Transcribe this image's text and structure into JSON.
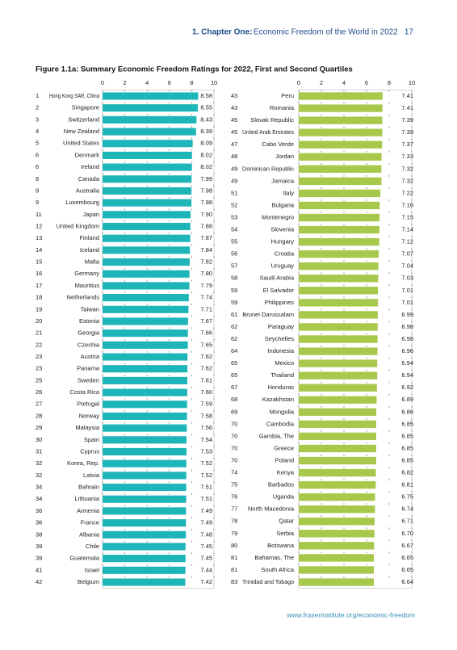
{
  "header": {
    "chapter": "1. Chapter One:",
    "title": "Economic Freedom of the World in 2022",
    "page_number": 17
  },
  "figure_title": "Figure 1.1a: Summary Economic Freedom Ratings for 2022, First and Second Quartiles",
  "footer": "www.fraserinstitute.org/economic-freedom",
  "chart_data": [
    {
      "type": "bar",
      "orientation": "horizontal",
      "color": "#1db5b8",
      "xlim": [
        0,
        10
      ],
      "xticks": [
        0,
        2,
        4,
        6,
        8,
        10
      ],
      "grid": true,
      "ranks": [
        1,
        2,
        3,
        4,
        5,
        6,
        6,
        8,
        9,
        9,
        11,
        12,
        13,
        14,
        15,
        16,
        17,
        18,
        19,
        20,
        21,
        22,
        23,
        23,
        25,
        26,
        27,
        28,
        29,
        30,
        31,
        32,
        32,
        34,
        34,
        36,
        36,
        38,
        39,
        39,
        41,
        42
      ],
      "categories": [
        "Hong Kong SAR, China",
        "Singapore",
        "Switzerland",
        "New Zealand",
        "United States",
        "Denmark",
        "Ireland",
        "Canada",
        "Australia",
        "Luxembourg",
        "Japan",
        "United Kingdom",
        "Finland",
        "Iceland",
        "Malta",
        "Germany",
        "Mauritius",
        "Netherlands",
        "Taiwan",
        "Estonia",
        "Georgia",
        "Czechia",
        "Austria",
        "Panama",
        "Sweden",
        "Costa Rica",
        "Portugal",
        "Norway",
        "Malaysia",
        "Spain",
        "Cyprus",
        "Korea, Rep.",
        "Latvia",
        "Bahrain",
        "Lithuania",
        "Armenia",
        "France",
        "Albania",
        "Chile",
        "Guatemala",
        "Israel",
        "Belgium"
      ],
      "values": [
        8.58,
        8.55,
        8.43,
        8.39,
        8.09,
        8.02,
        8.02,
        7.99,
        7.98,
        7.98,
        7.9,
        7.88,
        7.87,
        7.84,
        7.82,
        7.8,
        7.79,
        7.74,
        7.71,
        7.67,
        7.66,
        7.65,
        7.62,
        7.62,
        7.61,
        7.6,
        7.59,
        7.58,
        7.56,
        7.54,
        7.53,
        7.52,
        7.52,
        7.51,
        7.51,
        7.49,
        7.49,
        7.48,
        7.45,
        7.45,
        7.44,
        7.42
      ],
      "value_labels": [
        "8.58",
        "8.55",
        "8.43",
        "8.39",
        "8.09",
        "8.02",
        "8.02",
        "7.99",
        "7.98",
        "7.98",
        "7.90",
        "7.88",
        "7.87",
        "7.84",
        "7.82",
        "7.80",
        "7.79",
        "7.74",
        "7.71",
        "7.67",
        "7.66",
        "7.65",
        "7.62",
        "7.62",
        "7.61",
        "7.60",
        "7.59",
        "7.58",
        "7.56",
        "7.54",
        "7.53",
        "7.52",
        "7.52",
        "7.51",
        "7.51",
        "7.49",
        "7.49",
        "7.48",
        "7.45",
        "7.45",
        "7.44",
        "7.42"
      ]
    },
    {
      "type": "bar",
      "orientation": "horizontal",
      "color": "#a8c84c",
      "xlim": [
        0,
        10
      ],
      "xticks": [
        0,
        2,
        4,
        6,
        8,
        10
      ],
      "grid": true,
      "ranks": [
        43,
        43,
        45,
        45,
        47,
        48,
        49,
        49,
        51,
        52,
        53,
        54,
        55,
        56,
        57,
        58,
        59,
        59,
        61,
        62,
        62,
        64,
        65,
        65,
        67,
        68,
        69,
        70,
        70,
        70,
        70,
        74,
        75,
        76,
        77,
        78,
        79,
        80,
        81,
        81,
        83
      ],
      "categories": [
        "Peru",
        "Romania",
        "Slovak Republic",
        "United Arab Emirates",
        "Cabo Verde",
        "Jordan",
        "Dominican Republic",
        "Jamaica",
        "Italy",
        "Bulgaria",
        "Montenegro",
        "Slovenia",
        "Hungary",
        "Croatia",
        "Uruguay",
        "Saudi Arabia",
        "El Salvador",
        "Philippines",
        "Brunei Darussalam",
        "Paraguay",
        "Seychelles",
        "Indonesia",
        "Mexico",
        "Thailand",
        "Honduras",
        "Kazakhstan",
        "Mongolia",
        "Cambodia",
        "Gambia, The",
        "Greece",
        "Poland",
        "Kenya",
        "Barbados",
        "Uganda",
        "North Macedonia",
        "Qatar",
        "Serbia",
        "Botswana",
        "Bahamas, The",
        "South Africa",
        "Trinidad and Tobago"
      ],
      "values": [
        7.41,
        7.41,
        7.39,
        7.39,
        7.37,
        7.33,
        7.32,
        7.32,
        7.22,
        7.16,
        7.15,
        7.14,
        7.12,
        7.07,
        7.04,
        7.03,
        7.01,
        7.01,
        6.99,
        6.98,
        6.98,
        6.96,
        6.94,
        6.94,
        6.92,
        6.89,
        6.86,
        6.85,
        6.85,
        6.85,
        6.85,
        6.82,
        6.81,
        6.75,
        6.74,
        6.71,
        6.7,
        6.67,
        6.65,
        6.65,
        6.64
      ],
      "value_labels": [
        "7.41",
        "7.41",
        "7.39",
        "7.39",
        "7.37",
        "7.33",
        "7.32",
        "7.32",
        "7.22",
        "7.16",
        "7.15",
        "7.14",
        "7.12",
        "7.07",
        "7.04",
        "7.03",
        "7.01",
        "7.01",
        "6.99",
        "6.98",
        "6.98",
        "6.96",
        "6.94",
        "6.94",
        "6.92",
        "6.89",
        "6.86",
        "6.85",
        "6.85",
        "6.85",
        "6.85",
        "6.82",
        "6.81",
        "6.75",
        "6.74",
        "6.71",
        "6.70",
        "6.67",
        "6.65",
        "6.65",
        "6.64"
      ]
    }
  ]
}
